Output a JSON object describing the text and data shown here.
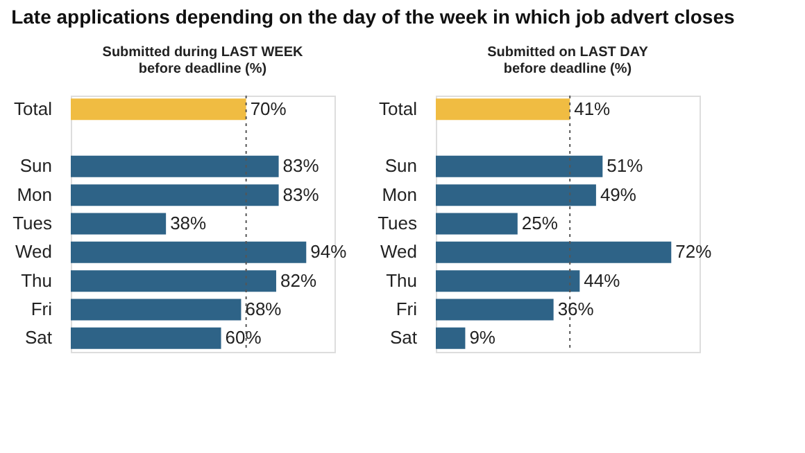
{
  "chart_data": [
    {
      "type": "bar",
      "orientation": "horizontal",
      "title": "Late applications depending on the day of the week in which job advert closes",
      "subtitle": "Submitted during LAST WEEK\nbefore deadline (%)",
      "categories": [
        "Total",
        null,
        "Sun",
        "Mon",
        "Tues",
        "Wed",
        "Thu",
        "Fri",
        "Sat"
      ],
      "values": [
        70,
        null,
        83,
        83,
        38,
        94,
        82,
        68,
        60
      ],
      "colors": [
        "#f0bc42",
        null,
        "#2e6387",
        "#2e6387",
        "#2e6387",
        "#2e6387",
        "#2e6387",
        "#2e6387",
        "#2e6387"
      ],
      "value_labels": [
        "70%",
        null,
        "83%",
        "83%",
        "38%",
        "94%",
        "82%",
        "68%",
        "60%"
      ],
      "ref_lines": [
        {
          "axis": "x",
          "value": 70,
          "color": "#555555",
          "line_style": "dotted"
        }
      ],
      "tick_labels": "y",
      "grid": false
    },
    {
      "type": "bar",
      "orientation": "horizontal",
      "subtitle": "Submitted on LAST DAY\nbefore deadline (%)",
      "categories": [
        "Total",
        null,
        "Sun",
        "Mon",
        "Tues",
        "Wed",
        "Thu",
        "Fri",
        "Sat"
      ],
      "values": [
        41,
        null,
        51,
        49,
        25,
        72,
        44,
        36,
        9
      ],
      "colors": [
        "#f0bc42",
        null,
        "#2e6387",
        "#2e6387",
        "#2e6387",
        "#2e6387",
        "#2e6387",
        "#2e6387",
        "#2e6387"
      ],
      "value_labels": [
        "41%",
        null,
        "51%",
        "49%",
        "25%",
        "72%",
        "44%",
        "36%",
        "9%"
      ],
      "ref_lines": [
        {
          "axis": "x",
          "value": 41,
          "color": "#555555",
          "line_style": "dotted"
        }
      ],
      "tick_labels": "y",
      "grid": false
    }
  ]
}
